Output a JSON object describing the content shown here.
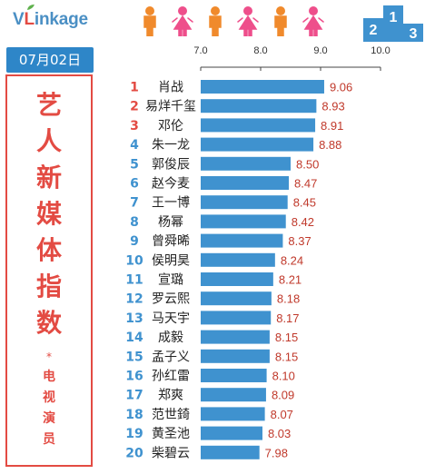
{
  "logo": {
    "v": "V",
    "l": "L",
    "rest": "inkage"
  },
  "people_icons": [
    "person-orange-icon",
    "person-pink-icon",
    "person-orange-icon",
    "person-pink-icon",
    "person-orange-icon",
    "person-pink-icon"
  ],
  "date": "07月02日",
  "side_title_chars": [
    "艺",
    "人",
    "新",
    "媒",
    "体",
    "指",
    "数"
  ],
  "side_star": "*",
  "side_sub_chars": [
    "电",
    "视",
    "演",
    "员"
  ],
  "podium": {
    "ranks": [
      "2",
      "1",
      "3"
    ]
  },
  "colors": {
    "bar": "#3f92cf",
    "rank_top3": "#e34b43",
    "rank_other": "#3f92cf",
    "value": "#c0392b",
    "accent_red": "#e34b43",
    "accent_blue": "#2e86c8",
    "person_orange": "#f08a2c",
    "person_pink": "#ee4f8b"
  },
  "chart_data": {
    "type": "bar",
    "orientation": "horizontal",
    "title": "艺人新媒体指数",
    "subtitle": "电视演员",
    "xlim": [
      7.0,
      10.0
    ],
    "xticks": [
      "7.0",
      "8.0",
      "9.0",
      "10.0"
    ],
    "grid": false,
    "ranks": [
      "1",
      "2",
      "3",
      "4",
      "5",
      "6",
      "7",
      "8",
      "9",
      "10",
      "11",
      "12",
      "13",
      "14",
      "15",
      "16",
      "17",
      "18",
      "19",
      "20"
    ],
    "categories": [
      "肖战",
      "易烊千玺",
      "邓伦",
      "朱一龙",
      "郭俊辰",
      "赵今麦",
      "王一博",
      "杨幂",
      "曾舜晞",
      "侯明昊",
      "宣璐",
      "罗云熙",
      "马天宇",
      "成毅",
      "孟子义",
      "孙红雷",
      "郑爽",
      "范世錡",
      "黄圣池",
      "柴碧云"
    ],
    "values": [
      9.06,
      8.93,
      8.91,
      8.88,
      8.5,
      8.47,
      8.45,
      8.42,
      8.37,
      8.24,
      8.21,
      8.18,
      8.17,
      8.15,
      8.15,
      8.1,
      8.09,
      8.07,
      8.03,
      7.98
    ],
    "value_labels": [
      "9.06",
      "8.93",
      "8.91",
      "8.88",
      "8.50",
      "8.47",
      "8.45",
      "8.42",
      "8.37",
      "8.24",
      "8.21",
      "8.18",
      "8.17",
      "8.15",
      "8.15",
      "8.10",
      "8.09",
      "8.07",
      "8.03",
      "7.98"
    ]
  }
}
